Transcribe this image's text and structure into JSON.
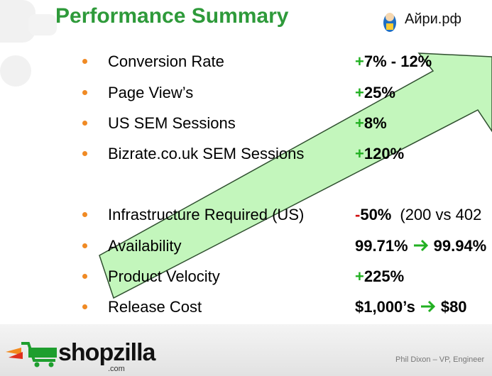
{
  "header": {
    "title": "Performance Summary",
    "logo": "Айри.рф"
  },
  "bullets": [
    {
      "label": "Conversion Rate",
      "sign": "+",
      "value": "7%  - 12%"
    },
    {
      "label": "Page View’s",
      "sign": "+",
      "value": "25%"
    },
    {
      "label": "US SEM Sessions",
      "sign": "+",
      "value": "8%"
    },
    {
      "label": "Bizrate.co.uk SEM Sessions",
      "sign": "+",
      "value": "120%"
    },
    {
      "label": "Infrastructure Required (US)",
      "sign": "-",
      "value": "50%",
      "note": "(200 vs 402"
    },
    {
      "label": "Availability",
      "value": "99.71%",
      "target": "99.94%"
    },
    {
      "label": "Product Velocity",
      "sign": "+",
      "value": "225%"
    },
    {
      "label": "Release Cost",
      "value": "$1,000’s",
      "target": "$80"
    }
  ],
  "footer": {
    "brand": "shopzilla",
    "brand_suffix": ".com",
    "credit": "Phil Dixon – VP, Engineer"
  }
}
